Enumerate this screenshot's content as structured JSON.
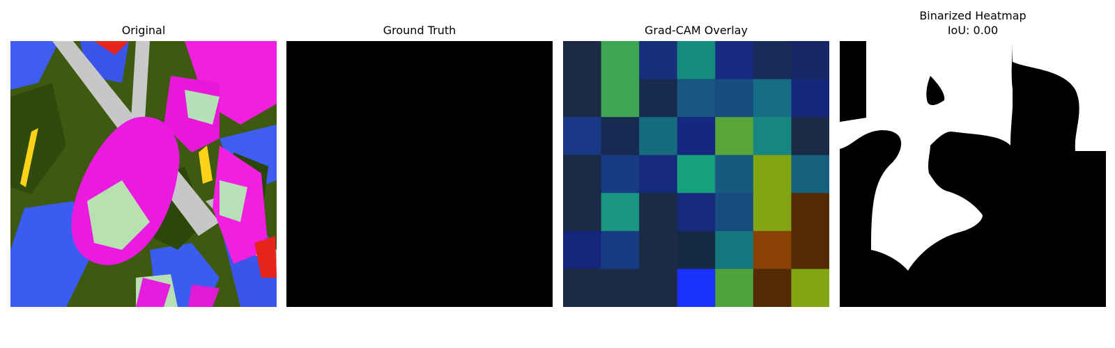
{
  "panels": [
    {
      "title": "Original"
    },
    {
      "title": "Ground Truth"
    },
    {
      "title": "Grad-CAM Overlay"
    },
    {
      "title": "Binarized Heatmap",
      "subtitle": "IoU: 0.00"
    }
  ],
  "gradcam_grid": [
    [
      "#1b2a45",
      "#3ea552",
      "#16307a",
      "#178a80",
      "#152a80",
      "#172a5a",
      "#172766"
    ],
    [
      "#1b2a45",
      "#3ea552",
      "#172a50",
      "#175781",
      "#174c80",
      "#166c84",
      "#15287a"
    ],
    [
      "#183784",
      "#182a52",
      "#166a7e",
      "#15287f",
      "#58a53a",
      "#178680",
      "#1b2a45"
    ],
    [
      "#1b2a45",
      "#183a82",
      "#152a7a",
      "#18a07c",
      "#165a80",
      "#82a514",
      "#16607e"
    ],
    [
      "#1b2a45",
      "#1a9680",
      "#1b2a45",
      "#162a7e",
      "#174c80",
      "#82a514",
      "#542a04"
    ],
    [
      "#15267a",
      "#183a82",
      "#1b2a45",
      "#172a45",
      "#16787e",
      "#8a4204",
      "#542a04"
    ],
    [
      "#1b2a45",
      "#1b2a45",
      "#1b2a45",
      "#1b32fa",
      "#50a23a",
      "#532a06",
      "#82a514"
    ]
  ]
}
